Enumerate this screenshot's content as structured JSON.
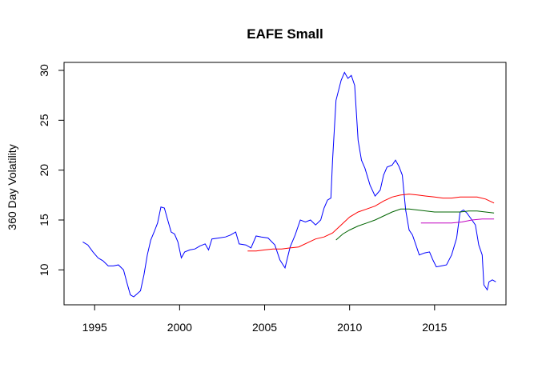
{
  "chart_data": {
    "type": "line",
    "title": "EAFE Small",
    "xlabel": "",
    "ylabel": "360 Day Volatility",
    "xlim": [
      1993.2,
      2019.2
    ],
    "ylim": [
      6.5,
      30.8
    ],
    "xticks": [
      1995,
      2000,
      2005,
      2010,
      2015
    ],
    "yticks": [
      10,
      15,
      20,
      25,
      30
    ],
    "grid": false,
    "legend": "none",
    "series": [
      {
        "color": "#0000ff",
        "points": [
          [
            1994.3,
            12.8
          ],
          [
            1994.6,
            12.5
          ],
          [
            1994.9,
            11.8
          ],
          [
            1995.2,
            11.2
          ],
          [
            1995.5,
            10.9
          ],
          [
            1995.8,
            10.4
          ],
          [
            1996.1,
            10.4
          ],
          [
            1996.4,
            10.5
          ],
          [
            1996.7,
            10.0
          ],
          [
            1996.9,
            8.7
          ],
          [
            1997.1,
            7.5
          ],
          [
            1997.3,
            7.3
          ],
          [
            1997.5,
            7.6
          ],
          [
            1997.7,
            7.9
          ],
          [
            1997.9,
            9.5
          ],
          [
            1998.1,
            11.5
          ],
          [
            1998.3,
            13.0
          ],
          [
            1998.5,
            13.8
          ],
          [
            1998.7,
            14.7
          ],
          [
            1998.9,
            16.3
          ],
          [
            1999.1,
            16.2
          ],
          [
            1999.3,
            15.0
          ],
          [
            1999.5,
            13.8
          ],
          [
            1999.7,
            13.6
          ],
          [
            1999.9,
            12.8
          ],
          [
            2000.1,
            11.2
          ],
          [
            2000.3,
            11.8
          ],
          [
            2000.6,
            12.0
          ],
          [
            2000.9,
            12.1
          ],
          [
            2001.2,
            12.4
          ],
          [
            2001.5,
            12.6
          ],
          [
            2001.7,
            12.0
          ],
          [
            2001.9,
            13.1
          ],
          [
            2002.3,
            13.2
          ],
          [
            2002.7,
            13.3
          ],
          [
            2003.0,
            13.5
          ],
          [
            2003.3,
            13.8
          ],
          [
            2003.5,
            12.6
          ],
          [
            2003.9,
            12.5
          ],
          [
            2004.2,
            12.2
          ],
          [
            2004.5,
            13.4
          ],
          [
            2004.8,
            13.3
          ],
          [
            2005.2,
            13.2
          ],
          [
            2005.6,
            12.5
          ],
          [
            2005.9,
            11.0
          ],
          [
            2006.2,
            10.2
          ],
          [
            2006.5,
            12.3
          ],
          [
            2006.8,
            13.5
          ],
          [
            2007.1,
            15.0
          ],
          [
            2007.4,
            14.8
          ],
          [
            2007.7,
            15.0
          ],
          [
            2008.0,
            14.5
          ],
          [
            2008.3,
            15.0
          ],
          [
            2008.5,
            16.2
          ],
          [
            2008.7,
            17.0
          ],
          [
            2008.9,
            17.2
          ],
          [
            2009.0,
            21.0
          ],
          [
            2009.2,
            27.0
          ],
          [
            2009.5,
            29.0
          ],
          [
            2009.7,
            29.8
          ],
          [
            2009.9,
            29.2
          ],
          [
            2010.1,
            29.5
          ],
          [
            2010.3,
            28.5
          ],
          [
            2010.5,
            23.0
          ],
          [
            2010.7,
            21.0
          ],
          [
            2010.9,
            20.2
          ],
          [
            2011.2,
            18.5
          ],
          [
            2011.5,
            17.4
          ],
          [
            2011.8,
            18.0
          ],
          [
            2012.0,
            19.5
          ],
          [
            2012.2,
            20.3
          ],
          [
            2012.5,
            20.5
          ],
          [
            2012.7,
            21.0
          ],
          [
            2012.9,
            20.4
          ],
          [
            2013.1,
            19.5
          ],
          [
            2013.3,
            16.0
          ],
          [
            2013.5,
            14.0
          ],
          [
            2013.7,
            13.5
          ],
          [
            2013.9,
            12.5
          ],
          [
            2014.1,
            11.5
          ],
          [
            2014.4,
            11.7
          ],
          [
            2014.7,
            11.8
          ],
          [
            2014.9,
            11.0
          ],
          [
            2015.1,
            10.3
          ],
          [
            2015.4,
            10.4
          ],
          [
            2015.7,
            10.5
          ],
          [
            2016.0,
            11.5
          ],
          [
            2016.3,
            13.2
          ],
          [
            2016.5,
            15.8
          ],
          [
            2016.7,
            16.0
          ],
          [
            2016.9,
            15.7
          ],
          [
            2017.2,
            15.0
          ],
          [
            2017.4,
            14.5
          ],
          [
            2017.6,
            12.5
          ],
          [
            2017.8,
            11.5
          ],
          [
            2017.9,
            8.5
          ],
          [
            2018.1,
            8.0
          ],
          [
            2018.2,
            8.8
          ],
          [
            2018.4,
            9.0
          ],
          [
            2018.6,
            8.8
          ]
        ]
      },
      {
        "color": "#ff0000",
        "points": [
          [
            2004.0,
            11.9
          ],
          [
            2004.5,
            11.9
          ],
          [
            2005.0,
            12.0
          ],
          [
            2005.5,
            12.1
          ],
          [
            2006.0,
            12.1
          ],
          [
            2006.5,
            12.2
          ],
          [
            2007.0,
            12.3
          ],
          [
            2007.5,
            12.7
          ],
          [
            2008.0,
            13.1
          ],
          [
            2008.5,
            13.3
          ],
          [
            2009.0,
            13.7
          ],
          [
            2009.5,
            14.5
          ],
          [
            2010.0,
            15.3
          ],
          [
            2010.5,
            15.8
          ],
          [
            2011.0,
            16.1
          ],
          [
            2011.5,
            16.4
          ],
          [
            2012.0,
            16.9
          ],
          [
            2012.5,
            17.3
          ],
          [
            2013.0,
            17.5
          ],
          [
            2013.5,
            17.6
          ],
          [
            2014.0,
            17.5
          ],
          [
            2014.5,
            17.4
          ],
          [
            2015.0,
            17.3
          ],
          [
            2015.5,
            17.2
          ],
          [
            2016.0,
            17.2
          ],
          [
            2016.5,
            17.3
          ],
          [
            2017.0,
            17.3
          ],
          [
            2017.5,
            17.3
          ],
          [
            2018.0,
            17.1
          ],
          [
            2018.5,
            16.7
          ]
        ]
      },
      {
        "color": "#006400",
        "points": [
          [
            2009.2,
            13.0
          ],
          [
            2009.6,
            13.6
          ],
          [
            2010.0,
            14.0
          ],
          [
            2010.5,
            14.4
          ],
          [
            2011.0,
            14.7
          ],
          [
            2011.5,
            15.0
          ],
          [
            2012.0,
            15.4
          ],
          [
            2012.5,
            15.8
          ],
          [
            2013.0,
            16.1
          ],
          [
            2013.5,
            16.1
          ],
          [
            2014.0,
            16.0
          ],
          [
            2014.5,
            15.9
          ],
          [
            2015.0,
            15.8
          ],
          [
            2015.5,
            15.8
          ],
          [
            2016.0,
            15.8
          ],
          [
            2016.5,
            15.8
          ],
          [
            2017.0,
            15.9
          ],
          [
            2017.5,
            15.9
          ],
          [
            2018.0,
            15.8
          ],
          [
            2018.5,
            15.7
          ]
        ]
      },
      {
        "color": "#c000c0",
        "points": [
          [
            2014.2,
            14.7
          ],
          [
            2014.8,
            14.7
          ],
          [
            2015.4,
            14.7
          ],
          [
            2016.0,
            14.7
          ],
          [
            2016.6,
            14.8
          ],
          [
            2017.2,
            15.0
          ],
          [
            2017.8,
            15.1
          ],
          [
            2018.5,
            15.1
          ]
        ]
      }
    ]
  }
}
